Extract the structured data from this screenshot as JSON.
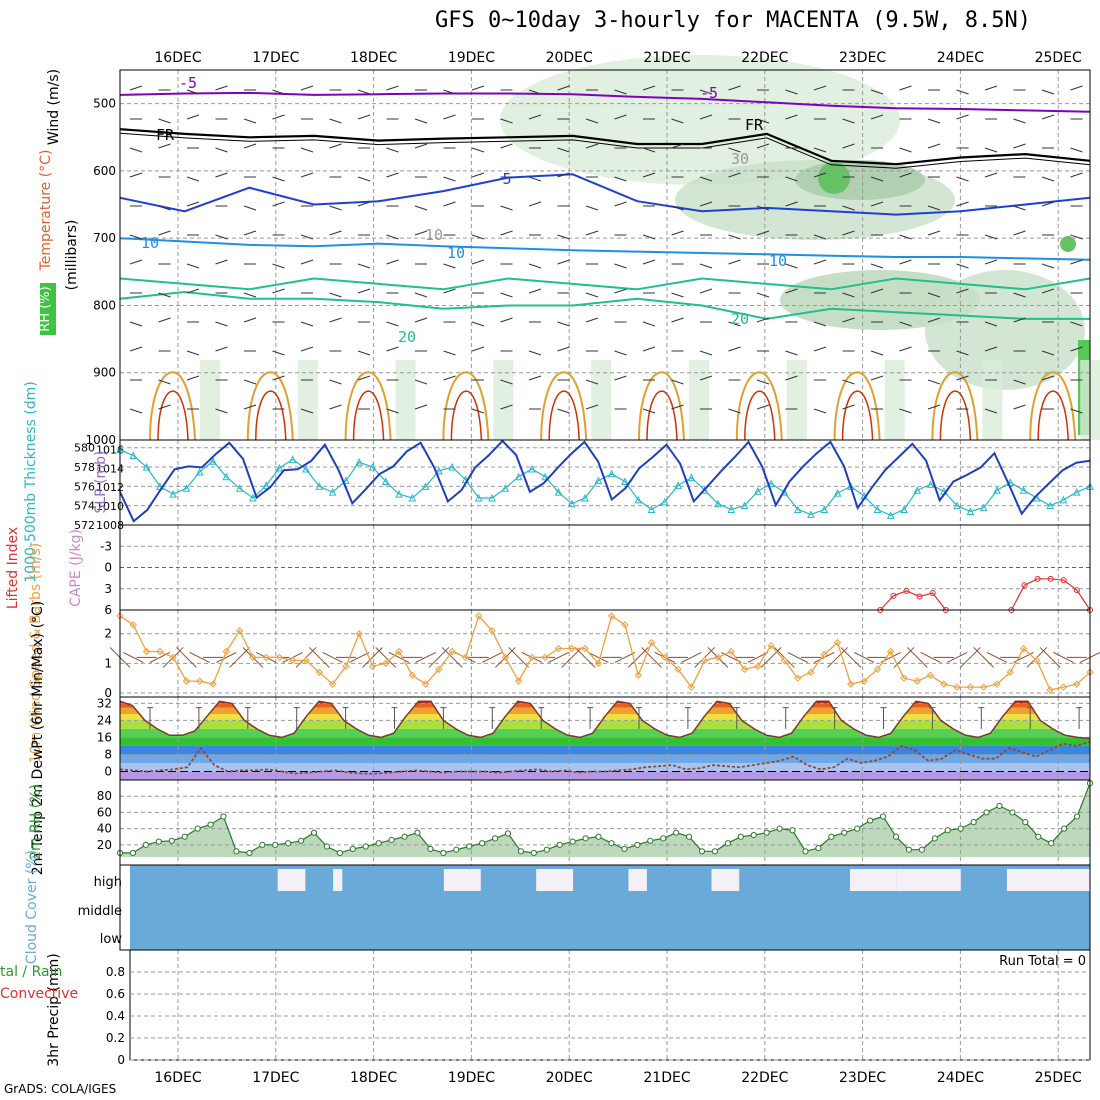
{
  "title": "GFS 0~10day 3-hourly for MACENTA (9.5W, 8.5N)",
  "credit": "GrADS: COLA/IGES",
  "colors": {
    "temp_contour": "#7f00bf",
    "freezing": "#000000",
    "blue5": "#1e3fd6",
    "blue10": "#1e8fe6",
    "green20": "#1fbf8f",
    "warm": "#e0a030",
    "hot": "#cc3300",
    "rh_fill": "#bcd9bc",
    "thickness": "#28b8c8",
    "slp": "#1e3fbf",
    "li": "#e03030",
    "wind10": "#f0a040",
    "cloud": "#6aaad8",
    "cloud_clear": "#f4f0f8",
    "rh2m": "#40a040"
  },
  "chart_data": [
    {
      "type": "heatmap",
      "panel": "upper-air",
      "ylabel_wind": "Wind (m/s)",
      "ylabel_temp": "Temperature (°C)",
      "ylabel_rh": "RH (%)",
      "ylabel_p": "(millibars)",
      "dates": [
        "16DEC",
        "17DEC",
        "18DEC",
        "19DEC",
        "20DEC",
        "21DEC",
        "22DEC",
        "23DEC",
        "24DEC",
        "25DEC"
      ],
      "yticks": [
        "500",
        "600",
        "700",
        "800",
        "900",
        "1000"
      ],
      "ylim": [
        1000,
        450
      ],
      "contour_labels": [
        "-5",
        "-5",
        "FR",
        "FR",
        "5",
        "10",
        "10",
        "10",
        "20",
        "20",
        "10",
        "30"
      ],
      "contours": [
        {
          "level": "-5",
          "p": [
            487,
            485,
            484,
            487,
            486,
            485,
            485,
            486,
            490,
            493,
            498,
            503,
            507,
            508,
            510,
            512
          ]
        },
        {
          "level": "FR",
          "p": [
            538,
            545,
            550,
            548,
            555,
            552,
            550,
            548,
            560,
            560,
            545,
            585,
            590,
            580,
            575,
            585
          ]
        },
        {
          "level": "5",
          "p": [
            640,
            660,
            625,
            650,
            645,
            630,
            610,
            605,
            645,
            660,
            655,
            660,
            665,
            660,
            650,
            640
          ]
        },
        {
          "level": "10",
          "p": [
            700,
            705,
            710,
            712,
            708,
            712,
            715,
            718,
            720,
            722,
            724,
            726,
            728,
            728,
            730,
            732
          ]
        },
        {
          "level": "20",
          "p": [
            790,
            780,
            790,
            790,
            795,
            805,
            800,
            800,
            790,
            800,
            820,
            805,
            810,
            815,
            820,
            820
          ]
        }
      ]
    },
    {
      "type": "line",
      "panel": "thickness-slp",
      "ylabel_left": "1000-500mb Thickness (dm)",
      "ylabel_right": "SLP (mb)",
      "yticks_left": [
        "572",
        "574",
        "576",
        "578",
        "580"
      ],
      "yticks_right": [
        "1008",
        "1010",
        "1012",
        "1014",
        "1016"
      ],
      "ylim_left": [
        572,
        580.8
      ],
      "series": [
        {
          "values": [
            579.8,
            579.2,
            578,
            576,
            575.2,
            575.8,
            577.5,
            578.6,
            577,
            575.8,
            574.8,
            576.1,
            577.9,
            578.8,
            577.8,
            576,
            575.4,
            576.6,
            578.5,
            578,
            576.5,
            575.2,
            574.8,
            576,
            577.6,
            578,
            576.7,
            574.8,
            574.8,
            575.8,
            577,
            577.8,
            577,
            575.4,
            574.2,
            574.8,
            576.6,
            577.3,
            576.5,
            574.6,
            573.6,
            574.4,
            576.1,
            576.9,
            575.6,
            574.2,
            573.6,
            574,
            575.5,
            576.3,
            575.4,
            573.6,
            573.1,
            573.6,
            575.3,
            576,
            575,
            573.6,
            573,
            573.6,
            575.6,
            576.2,
            575.5,
            574,
            573.4,
            573.8,
            575.6,
            576.4,
            575.6,
            574.8,
            574,
            574.6,
            575.4,
            576
          ]
        },
        {
          "values": [
            1011.5,
            1008.4,
            1009.6,
            1011.8,
            1013.9,
            1014.2,
            1014.1,
            1015.5,
            1016.7,
            1015,
            1010.9,
            1012,
            1013.8,
            1013.9,
            1014.8,
            1016.5,
            1013.8,
            1010.3,
            1011.8,
            1013.4,
            1014.2,
            1015.8,
            1016.7,
            1014.1,
            1010.5,
            1011.7,
            1014.1,
            1015.4,
            1016.9,
            1015.4,
            1011.5,
            1012.4,
            1014,
            1015.5,
            1016.8,
            1014.7,
            1010.7,
            1011.9,
            1014,
            1015.2,
            1016.5,
            1014.5,
            1010.5,
            1012.1,
            1013.7,
            1015.2,
            1016.8,
            1014.2,
            1010.1,
            1012.6,
            1014.2,
            1015.6,
            1016.8,
            1014.2,
            1009.8,
            1011.9,
            1013.8,
            1015.2,
            1016.6,
            1014.8,
            1010.6,
            1012.6,
            1013.3,
            1014.1,
            1015.6,
            1012.5,
            1009.2,
            1011,
            1012.4,
            1013.8,
            1014.6,
            1014.8
          ]
        }
      ]
    },
    {
      "type": "line",
      "panel": "li-cape",
      "ylabel_left": "Lifted Index",
      "ylabel_right": "CAPE (J/kg)",
      "yticks": [
        "-3",
        "0",
        "3",
        "6"
      ],
      "ylim": [
        -6,
        6
      ],
      "series": [
        {
          "name": "Lifted Index",
          "values": [
            null,
            null,
            null,
            null,
            null,
            null,
            null,
            null,
            null,
            null,
            null,
            null,
            null,
            null,
            null,
            null,
            null,
            null,
            null,
            null,
            null,
            null,
            null,
            null,
            null,
            null,
            null,
            null,
            null,
            null,
            null,
            null,
            null,
            null,
            null,
            null,
            null,
            null,
            null,
            null,
            null,
            null,
            null,
            null,
            null,
            null,
            null,
            null,
            null,
            null,
            null,
            null,
            null,
            null,
            null,
            null,
            null,
            null,
            6.2,
            4,
            3.3,
            4.1,
            3.6,
            6.2,
            null,
            null,
            null,
            null,
            6,
            2.5,
            1.6,
            1.6,
            1.8,
            3.2,
            6.2
          ]
        }
      ]
    },
    {
      "type": "line",
      "panel": "wind10m",
      "ylabel": "10m Wind Speed & Barbs (m/s)",
      "yticks": [
        "0",
        "1",
        "2"
      ],
      "ylim": [
        0,
        2.8
      ],
      "series": [
        {
          "name": "Speed",
          "values": [
            2.6,
            2.3,
            1.4,
            1.4,
            1.2,
            0.4,
            0.4,
            0.3,
            1.4,
            2.1,
            1.2,
            1.2,
            1.2,
            1.1,
            1.1,
            0.7,
            0.3,
            0.9,
            2,
            0.9,
            1,
            1.4,
            0.6,
            0.3,
            0.8,
            1.4,
            1.2,
            2.6,
            2.1,
            1.2,
            0.4,
            1.2,
            1.2,
            1.5,
            1.5,
            1.5,
            1,
            2.6,
            2.3,
            0.6,
            1.7,
            1.2,
            0.8,
            0.2,
            1.1,
            1.2,
            1.4,
            0.8,
            0.9,
            1.6,
            1.1,
            0.5,
            0.7,
            1.3,
            1.7,
            0.3,
            0.4,
            0.8,
            1.4,
            0.5,
            0.4,
            0.6,
            0.3,
            0.2,
            0.2,
            0.2,
            0.3,
            0.7,
            1.5,
            1.1,
            0.1,
            0.2,
            0.3,
            0.7
          ]
        }
      ]
    },
    {
      "type": "area",
      "panel": "temp2m",
      "ylabel": "2m Temp 2m DewPt (6hr Min/Max) (°C)",
      "yticks": [
        "0",
        "8",
        "16",
        "24",
        "32"
      ],
      "ylim": [
        -4,
        35
      ],
      "series": [
        {
          "name": "Temp",
          "values": [
            33,
            31,
            24,
            20,
            17,
            17,
            19,
            26,
            33,
            32,
            24,
            20,
            17,
            16,
            18,
            26,
            33,
            32,
            24,
            20,
            17,
            16,
            18,
            26,
            33,
            33,
            24,
            20,
            17,
            16,
            18,
            26,
            33,
            32,
            24,
            20,
            17,
            16,
            18,
            26,
            33,
            32,
            24,
            20,
            17,
            16,
            18,
            26,
            33,
            32,
            24,
            20,
            17,
            16,
            18,
            26,
            33,
            33,
            24,
            20,
            17,
            16,
            18,
            26,
            33,
            32,
            24,
            20,
            17,
            16,
            18,
            26,
            33,
            33,
            24,
            20,
            17,
            16,
            15.5
          ]
        },
        {
          "name": "DewPt",
          "values": [
            1,
            0.5,
            0,
            0.5,
            1,
            2,
            11,
            3,
            0,
            0.5,
            0.5,
            1,
            0,
            -1,
            -0.5,
            0,
            0.5,
            -0.5,
            -1,
            -1,
            -0.5,
            0,
            0.5,
            0,
            -0.5,
            0,
            0,
            0,
            -0.5,
            0,
            0.5,
            1,
            0,
            0.5,
            -0.5,
            0,
            0,
            0.5,
            1,
            2,
            2.5,
            3,
            1,
            1.5,
            3,
            2.5,
            2,
            3,
            4,
            5,
            7,
            3,
            1,
            2,
            6,
            4,
            5,
            7,
            12,
            10,
            5,
            6,
            10,
            8,
            6,
            6,
            11,
            9,
            7,
            10,
            13,
            12,
            14
          ]
        }
      ]
    },
    {
      "type": "area",
      "panel": "rh2m",
      "ylabel": "2m RH (%)",
      "yticks": [
        "20",
        "40",
        "60",
        "80"
      ],
      "ylim": [
        5,
        100
      ],
      "series": [
        {
          "name": "RH",
          "values": [
            10,
            10,
            20,
            24,
            25,
            30,
            40,
            45,
            55,
            12,
            10,
            20,
            20,
            22,
            25,
            35,
            18,
            10,
            15,
            18,
            22,
            26,
            30,
            35,
            15,
            10,
            14,
            18,
            22,
            28,
            34,
            12,
            10,
            14,
            20,
            24,
            28,
            30,
            22,
            15,
            20,
            25,
            28,
            35,
            30,
            12,
            12,
            22,
            30,
            32,
            35,
            40,
            38,
            12,
            16,
            30,
            35,
            40,
            50,
            55,
            30,
            14,
            14,
            28,
            38,
            40,
            48,
            60,
            68,
            60,
            48,
            30,
            22,
            40,
            55,
            96
          ]
        }
      ]
    },
    {
      "type": "heatmap",
      "panel": "cloud",
      "ylabel": "Cloud Cover (%)",
      "rows": [
        "high",
        "middle",
        "low"
      ],
      "high_clear_bins": [
        [
          16,
          19
        ],
        [
          22,
          23
        ],
        [
          34,
          38
        ],
        [
          44,
          48
        ],
        [
          54,
          56
        ],
        [
          63,
          66
        ],
        [
          78,
          83
        ],
        [
          83,
          90
        ],
        [
          95,
          104
        ]
      ]
    },
    {
      "type": "bar",
      "panel": "precip",
      "ylabel": "3hr Precip (mm)",
      "legend_left_1": "tal / Rain",
      "legend_left_2": "Convective",
      "run_total": "Run Total = 0",
      "yticks": [
        "0",
        "0.2",
        "0.4",
        "0.6",
        "0.8"
      ],
      "ylim": [
        0,
        1
      ],
      "values": []
    }
  ]
}
